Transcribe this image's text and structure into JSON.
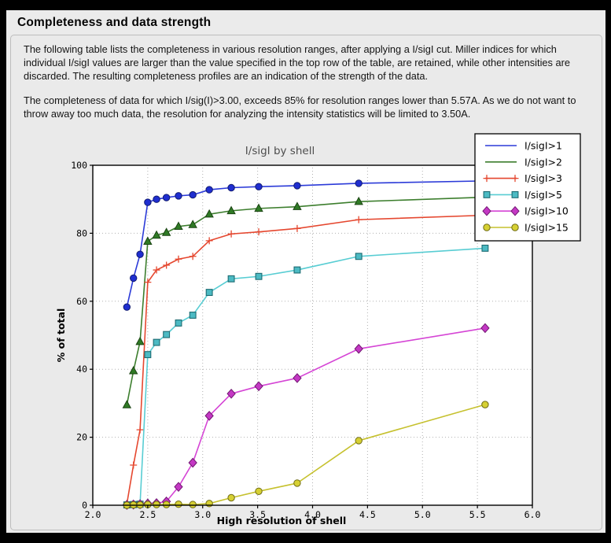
{
  "header": {
    "title": "Completeness and data strength"
  },
  "paragraphs": {
    "p1": "The following table lists the completeness in various resolution ranges, after applying a I/sigI cut. Miller indices for which individual I/sigI values are larger than the value specified in the top row of the table, are retained, while other intensities are discarded. The resulting completeness profiles are an indication of the strength of the data.",
    "p2": "The completeness of data for which I/sig(I)>3.00, exceeds 85% for resolution ranges lower than 5.57A. As we do not want to throw away too much data, the resolution for analyzing the intensity statistics will be limited to 3.50A."
  },
  "colors": {
    "page_frame": "#000000",
    "panel_bg": "#ebebeb",
    "plot_bg": "#ffffff",
    "grid": "#b0b0b0",
    "spine": "#000000",
    "title_text": "#4d4d4d"
  },
  "chart_data": {
    "type": "line",
    "title": "I/sigI by shell",
    "xlabel": "High resolution of shell",
    "ylabel": "% of total",
    "xlim": [
      2.0,
      6.0
    ],
    "ylim": [
      0,
      100
    ],
    "x_ticks": [
      2.0,
      2.5,
      3.0,
      3.5,
      4.0,
      4.5,
      5.0,
      5.5,
      6.0
    ],
    "y_ticks": [
      0,
      20,
      40,
      60,
      80,
      100
    ],
    "grid": true,
    "legend_position": "top-right",
    "x": [
      2.31,
      2.37,
      2.43,
      2.5,
      2.58,
      2.67,
      2.78,
      2.91,
      3.06,
      3.26,
      3.51,
      3.86,
      4.42,
      5.57
    ],
    "series": [
      {
        "name": "I/sigI>1",
        "line_color": "#2b3ad8",
        "marker": "circle",
        "marker_fill": "#1f2ed0",
        "marker_edge": "#101a70",
        "legend_marker": false,
        "values": [
          58.3,
          66.8,
          73.8,
          89.1,
          90.0,
          90.5,
          91.0,
          91.3,
          92.8,
          93.4,
          93.7,
          94.0,
          94.7,
          95.4
        ]
      },
      {
        "name": "I/sigI>2",
        "line_color": "#3c7e2d",
        "marker": "triangle",
        "marker_fill": "#2f7a25",
        "marker_edge": "#1b4413",
        "legend_marker": false,
        "values": [
          29.5,
          39.5,
          48.1,
          77.6,
          79.4,
          80.2,
          82.0,
          82.5,
          85.6,
          86.6,
          87.3,
          87.8,
          89.3,
          90.6
        ]
      },
      {
        "name": "I/sigI>3",
        "line_color": "#e5472f",
        "marker": "plus",
        "marker_fill": "none",
        "marker_edge": "#e5472f",
        "legend_marker": true,
        "values": [
          0.4,
          11.8,
          22.2,
          65.6,
          69.2,
          70.6,
          72.4,
          73.2,
          77.8,
          79.8,
          80.4,
          81.4,
          84.0,
          85.3
        ]
      },
      {
        "name": "I/sigI>5",
        "line_color": "#58cdd3",
        "marker": "square",
        "marker_fill": "#4cbac3",
        "marker_edge": "#1d6b72",
        "legend_marker": true,
        "values": [
          0.1,
          0.2,
          0.3,
          44.3,
          47.9,
          50.2,
          53.6,
          55.9,
          62.6,
          66.6,
          67.3,
          69.2,
          73.2,
          75.6
        ]
      },
      {
        "name": "I/sigI>10",
        "line_color": "#d545d5",
        "marker": "diamond",
        "marker_fill": "#c438c4",
        "marker_edge": "#701670",
        "legend_marker": true,
        "values": [
          0.1,
          0.2,
          0.3,
          0.5,
          0.6,
          1.1,
          5.4,
          12.5,
          26.3,
          32.8,
          35.0,
          37.4,
          46.0,
          52.1
        ]
      },
      {
        "name": "I/sigI>15",
        "line_color": "#c6c12e",
        "marker": "circle",
        "marker_fill": "#d6d033",
        "marker_edge": "#6f6b14",
        "legend_marker": true,
        "values": [
          0.0,
          0.1,
          0.1,
          0.2,
          0.2,
          0.2,
          0.3,
          0.2,
          0.5,
          2.2,
          4.1,
          6.5,
          19.0,
          29.6
        ]
      }
    ]
  }
}
